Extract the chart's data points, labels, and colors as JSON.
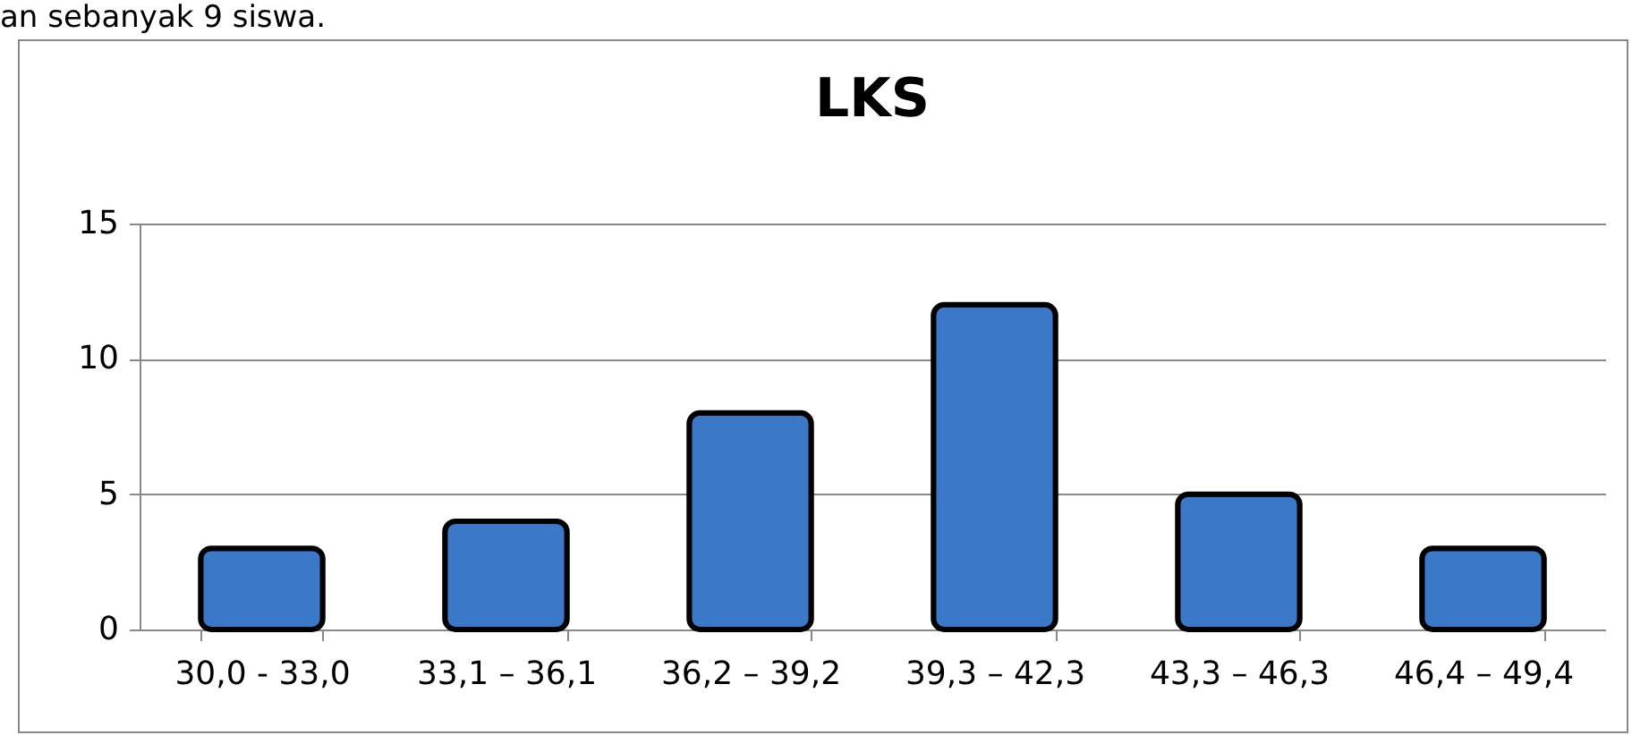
{
  "chart_data": {
    "type": "bar",
    "title": "LKS",
    "annotations": [
      "an sebanyak 9 siswa."
    ],
    "categories": [
      "30,0 - 33,0",
      "33,1 – 36,1",
      "36,2 – 39,2",
      "39,3 – 42,3",
      "43,3 – 46,3",
      "46,4 – 49,4"
    ],
    "values": [
      3,
      4,
      8,
      12,
      5,
      3
    ],
    "color": "#3b78c8",
    "ylim": [
      0,
      15
    ],
    "yticks": [
      0,
      5,
      10,
      15
    ],
    "grid": "y"
  }
}
